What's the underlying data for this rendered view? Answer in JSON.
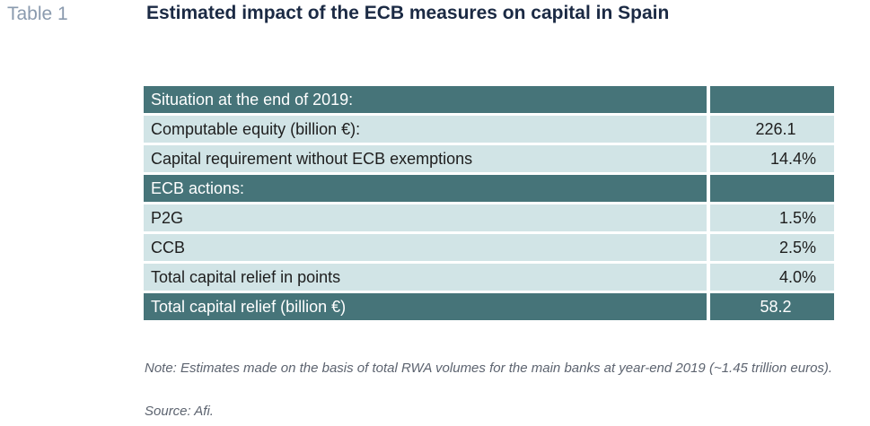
{
  "header": {
    "table_number": "Table 1",
    "title": "Estimated impact of the ECB measures on capital in Spain"
  },
  "table": {
    "rows": [
      {
        "label": "Situation at the end of 2019:",
        "value": "",
        "style": "dark"
      },
      {
        "label": "Computable equity (billion €):",
        "value": "226.1",
        "style": "light"
      },
      {
        "label": "Capital requirement without ECB exemptions",
        "value": "14.4%",
        "style": "light"
      },
      {
        "label": "ECB actions:",
        "value": "",
        "style": "dark"
      },
      {
        "label": "P2G",
        "value": "1.5%",
        "style": "light"
      },
      {
        "label": "CCB",
        "value": "2.5%",
        "style": "light"
      },
      {
        "label": "Total capital relief in points",
        "value": "4.0%",
        "style": "light"
      },
      {
        "label": "Total capital relief (billion €)",
        "value": "58.2",
        "style": "dark"
      }
    ]
  },
  "footer": {
    "note": "Note: Estimates made on the basis of total RWA volumes for the main banks at year-end 2019 (~1.45 trillion euros).",
    "source": "Source: Afi."
  },
  "colors": {
    "dark_row": "#467479",
    "light_row": "#d1e4e6",
    "title": "#1b2a44",
    "table_number": "#8a9aae"
  }
}
